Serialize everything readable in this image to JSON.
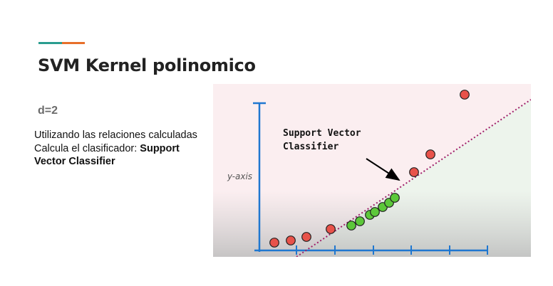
{
  "slide": {
    "accent_colors": [
      "#2a9d8f",
      "#e76f2a"
    ],
    "title": "SVM Kernel polinomico",
    "subtitle": "d=2",
    "body": {
      "line1": "Utilizando las relaciones calculadas",
      "line2_prefix": "Calcula el clasificador: ",
      "line2_bold": "Support Vector Classifier"
    }
  },
  "figure": {
    "yaxis_label": "y-axis",
    "annotation": [
      "Support Vector",
      "Classifier"
    ],
    "colors": {
      "upper_region": "#fbeef0",
      "lower_region": "#edf4ec",
      "axis": "#1f77d0",
      "red_points": "#e8524a",
      "green_points": "#5cc83a",
      "classifier_line": "#a0206a"
    },
    "red_points": [
      [
        86,
        223
      ],
      [
        109,
        220
      ],
      [
        131,
        215
      ],
      [
        165,
        204
      ],
      [
        282,
        124
      ],
      [
        305,
        99
      ],
      [
        353,
        15
      ]
    ],
    "green_points": [
      [
        194,
        199
      ],
      [
        206,
        193
      ],
      [
        220,
        184
      ],
      [
        227,
        180
      ],
      [
        238,
        173
      ],
      [
        247,
        167
      ],
      [
        255,
        160
      ]
    ]
  }
}
